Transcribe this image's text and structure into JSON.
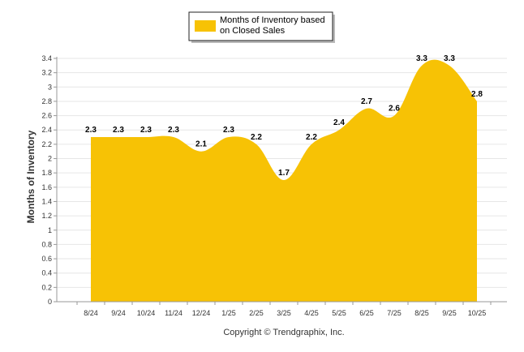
{
  "chart_data": {
    "type": "area",
    "categories": [
      "8/24",
      "9/24",
      "10/24",
      "11/24",
      "12/24",
      "1/25",
      "2/25",
      "3/25",
      "4/25",
      "5/25",
      "6/25",
      "7/25",
      "8/25",
      "9/25",
      "10/25"
    ],
    "series": [
      {
        "name": "Months of Inventory based on Closed Sales",
        "values": [
          2.3,
          2.3,
          2.3,
          2.3,
          2.1,
          2.3,
          2.2,
          1.7,
          2.2,
          2.4,
          2.7,
          2.6,
          3.3,
          3.3,
          2.8
        ]
      }
    ],
    "data_labels": [
      "2.3",
      "2.3",
      "2.3",
      "2.3",
      "2.1",
      "2.3",
      "2.2",
      "1.7",
      "2.2",
      "2.4",
      "2.7",
      "2.6",
      "3.3",
      "3.3",
      "2.8"
    ],
    "title": "",
    "xlabel": "",
    "ylabel": "Months of Inventory",
    "ylim": [
      0,
      3.4
    ],
    "yticks": [
      0,
      0.2,
      0.4,
      0.6,
      0.8,
      1,
      1.2,
      1.4,
      1.6,
      1.8,
      2,
      2.2,
      2.4,
      2.6,
      2.8,
      3,
      3.2,
      3.4
    ],
    "ytick_labels": [
      "0",
      "0.2",
      "0.4",
      "0.6",
      "0.8",
      "1",
      "1.2",
      "1.4",
      "1.6",
      "1.8",
      "2",
      "2.2",
      "2.4",
      "2.6",
      "2.8",
      "3",
      "3.2",
      "3.4"
    ],
    "grid": true,
    "legend_position": "top-center",
    "legend_lines": [
      "Months of Inventory based",
      "on Closed Sales"
    ]
  },
  "colors": {
    "fill": "#F7C205",
    "grid": "#e6e6e6",
    "axis": "#999999"
  },
  "footer": {
    "copyright": "Copyright © Trendgraphix, Inc."
  }
}
